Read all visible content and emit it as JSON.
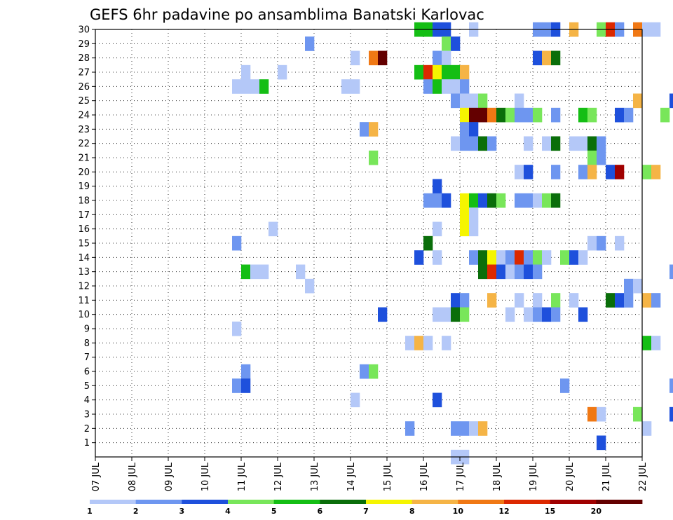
{
  "chart_data": {
    "type": "heatmap",
    "title": "GEFS 6hr padavine po ansamblima Banatski Karlovac",
    "xlabel": "",
    "ylabel": "",
    "x_tick_labels": [
      "07 JUL",
      "08 JUL",
      "09 JUL",
      "10 JUL",
      "11 JUL",
      "12 JUL",
      "13 JUL",
      "14 JUL",
      "15 JUL",
      "16 JUL",
      "17 JUL",
      "18 JUL",
      "19 JUL",
      "20 JUL",
      "21 JUL",
      "22 JUL"
    ],
    "x_range_days": [
      0,
      15
    ],
    "y_tick_labels": [
      "1",
      "2",
      "3",
      "4",
      "5",
      "6",
      "7",
      "8",
      "9",
      "10",
      "11",
      "12",
      "13",
      "14",
      "15",
      "16",
      "17",
      "18",
      "19",
      "20",
      "21",
      "22",
      "23",
      "24",
      "25",
      "26",
      "27",
      "28",
      "29",
      "30"
    ],
    "y_range": [
      0,
      30
    ],
    "grid": true,
    "time_step_hours": 6,
    "legend": {
      "placement": "bottom",
      "thresholds": [
        "1",
        "2",
        "3",
        "4",
        "5",
        "6",
        "7",
        "8",
        "10",
        "12",
        "15",
        "20"
      ],
      "colors": [
        "#b4c8f8",
        "#6e96f0",
        "#1e50dc",
        "#78e65a",
        "#14be14",
        "#0a6e0a",
        "#f5f500",
        "#f5b446",
        "#f07814",
        "#dc2800",
        "#a00000",
        "#640000"
      ]
    },
    "cells": [
      [
        30,
        15.75,
        5
      ],
      [
        30,
        16.0,
        5
      ],
      [
        30,
        16.25,
        3
      ],
      [
        30,
        16.5,
        3
      ],
      [
        30,
        17.25,
        1
      ],
      [
        30,
        19.0,
        2
      ],
      [
        30,
        19.25,
        2
      ],
      [
        30,
        19.5,
        3
      ],
      [
        30,
        20.0,
        8
      ],
      [
        30,
        20.75,
        4
      ],
      [
        30,
        21.0,
        10
      ],
      [
        30,
        21.25,
        2
      ],
      [
        30,
        21.75,
        9
      ],
      [
        30,
        22.0,
        1
      ],
      [
        30,
        22.25,
        1
      ],
      [
        29,
        12.75,
        2
      ],
      [
        29,
        16.5,
        4
      ],
      [
        29,
        16.75,
        3
      ],
      [
        28,
        14.0,
        1
      ],
      [
        28,
        14.5,
        9
      ],
      [
        28,
        14.75,
        12
      ],
      [
        28,
        16.25,
        2
      ],
      [
        28,
        16.5,
        1
      ],
      [
        28,
        19.0,
        3
      ],
      [
        28,
        19.25,
        8
      ],
      [
        28,
        19.5,
        6
      ],
      [
        27,
        11.0,
        1
      ],
      [
        27,
        12.0,
        1
      ],
      [
        27,
        15.75,
        5
      ],
      [
        27,
        16.0,
        10
      ],
      [
        27,
        16.25,
        7
      ],
      [
        27,
        16.5,
        5
      ],
      [
        27,
        16.75,
        5
      ],
      [
        27,
        17.0,
        8
      ],
      [
        26,
        10.75,
        1
      ],
      [
        26,
        11.0,
        1
      ],
      [
        26,
        11.25,
        1
      ],
      [
        26,
        11.5,
        5
      ],
      [
        26,
        13.75,
        1
      ],
      [
        26,
        14.0,
        1
      ],
      [
        26,
        16.0,
        2
      ],
      [
        26,
        16.25,
        5
      ],
      [
        26,
        16.5,
        1
      ],
      [
        26,
        16.75,
        1
      ],
      [
        26,
        17.0,
        2
      ],
      [
        25,
        16.75,
        2
      ],
      [
        25,
        17.0,
        1
      ],
      [
        25,
        17.25,
        1
      ],
      [
        25,
        17.5,
        4
      ],
      [
        25,
        18.5,
        1
      ],
      [
        25,
        21.75,
        8
      ],
      [
        25,
        22.75,
        3
      ],
      [
        24,
        17.0,
        7
      ],
      [
        24,
        17.25,
        12
      ],
      [
        24,
        17.5,
        12
      ],
      [
        24,
        17.75,
        9
      ],
      [
        24,
        18.0,
        6
      ],
      [
        24,
        18.25,
        4
      ],
      [
        24,
        18.5,
        2
      ],
      [
        24,
        18.75,
        2
      ],
      [
        24,
        19.0,
        4
      ],
      [
        24,
        19.5,
        2
      ],
      [
        24,
        20.25,
        5
      ],
      [
        24,
        20.5,
        4
      ],
      [
        24,
        21.25,
        3
      ],
      [
        24,
        21.5,
        2
      ],
      [
        24,
        22.5,
        4
      ],
      [
        23,
        14.25,
        2
      ],
      [
        23,
        14.5,
        8
      ],
      [
        23,
        17.0,
        2
      ],
      [
        23,
        17.25,
        3
      ],
      [
        22,
        16.75,
        1
      ],
      [
        22,
        17.0,
        2
      ],
      [
        22,
        17.25,
        2
      ],
      [
        22,
        17.5,
        6
      ],
      [
        22,
        17.75,
        2
      ],
      [
        22,
        18.75,
        1
      ],
      [
        22,
        19.25,
        1
      ],
      [
        22,
        19.5,
        6
      ],
      [
        22,
        20.0,
        1
      ],
      [
        22,
        20.25,
        1
      ],
      [
        22,
        20.5,
        6
      ],
      [
        22,
        20.75,
        2
      ],
      [
        21,
        14.5,
        4
      ],
      [
        21,
        20.5,
        4
      ],
      [
        21,
        20.75,
        2
      ],
      [
        20,
        18.5,
        1
      ],
      [
        20,
        18.75,
        3
      ],
      [
        20,
        19.5,
        2
      ],
      [
        20,
        20.25,
        2
      ],
      [
        20,
        20.5,
        8
      ],
      [
        20,
        21.0,
        3
      ],
      [
        20,
        21.25,
        11
      ],
      [
        20,
        22.0,
        4
      ],
      [
        20,
        22.25,
        8
      ],
      [
        19,
        16.25,
        3
      ],
      [
        18,
        16.0,
        2
      ],
      [
        18,
        16.25,
        2
      ],
      [
        18,
        16.5,
        3
      ],
      [
        18,
        17.0,
        7
      ],
      [
        18,
        17.25,
        5
      ],
      [
        18,
        17.5,
        3
      ],
      [
        18,
        17.75,
        6
      ],
      [
        18,
        18.0,
        4
      ],
      [
        18,
        18.5,
        2
      ],
      [
        18,
        18.75,
        2
      ],
      [
        18,
        19.0,
        1
      ],
      [
        18,
        19.25,
        4
      ],
      [
        18,
        19.5,
        6
      ],
      [
        17,
        17.0,
        7
      ],
      [
        17,
        17.25,
        1
      ],
      [
        16,
        11.75,
        1
      ],
      [
        16,
        16.25,
        1
      ],
      [
        16,
        17.0,
        7
      ],
      [
        16,
        17.25,
        1
      ],
      [
        15,
        10.75,
        2
      ],
      [
        15,
        20.5,
        1
      ],
      [
        15,
        20.75,
        2
      ],
      [
        15,
        21.25,
        1
      ],
      [
        14,
        15.75,
        3
      ],
      [
        15.0,
        16.0,
        6
      ],
      [
        14,
        16.25,
        1
      ],
      [
        14,
        17.25,
        2
      ],
      [
        14,
        17.5,
        6
      ],
      [
        14,
        17.75,
        7
      ],
      [
        14,
        18.0,
        1
      ],
      [
        14,
        18.25,
        2
      ],
      [
        14,
        18.5,
        10
      ],
      [
        14,
        18.75,
        2
      ],
      [
        14,
        19.0,
        4
      ],
      [
        14,
        19.25,
        1
      ],
      [
        14,
        19.75,
        4
      ],
      [
        14,
        20.0,
        3
      ],
      [
        14,
        20.25,
        1
      ],
      [
        13,
        11.0,
        5
      ],
      [
        13,
        11.25,
        1
      ],
      [
        13,
        11.5,
        1
      ],
      [
        13,
        12.5,
        1
      ],
      [
        13,
        17.5,
        6
      ],
      [
        13,
        17.75,
        10
      ],
      [
        13,
        18.0,
        3
      ],
      [
        13,
        18.25,
        1
      ],
      [
        13,
        18.5,
        2
      ],
      [
        13,
        18.75,
        3
      ],
      [
        13,
        19.0,
        2
      ],
      [
        13,
        22.75,
        2
      ],
      [
        12,
        12.75,
        1
      ],
      [
        12,
        21.5,
        2
      ],
      [
        12,
        21.75,
        1
      ],
      [
        11,
        16.75,
        3
      ],
      [
        11,
        17.0,
        2
      ],
      [
        11,
        17.75,
        8
      ],
      [
        11,
        18.5,
        1
      ],
      [
        11,
        19.0,
        1
      ],
      [
        11,
        19.5,
        4
      ],
      [
        11,
        20.0,
        1
      ],
      [
        11,
        21.0,
        6
      ],
      [
        11,
        21.25,
        3
      ],
      [
        11,
        21.5,
        2
      ],
      [
        11,
        22.0,
        8
      ],
      [
        11,
        22.25,
        2
      ],
      [
        10,
        14.75,
        3
      ],
      [
        10,
        16.25,
        1
      ],
      [
        10,
        16.5,
        1
      ],
      [
        10,
        16.75,
        6
      ],
      [
        10,
        17.0,
        4
      ],
      [
        10,
        18.25,
        1
      ],
      [
        10,
        18.75,
        1
      ],
      [
        10,
        19.0,
        2
      ],
      [
        10,
        19.25,
        3
      ],
      [
        10,
        19.5,
        2
      ],
      [
        10,
        20.25,
        3
      ],
      [
        9,
        10.75,
        1
      ],
      [
        8,
        15.5,
        1
      ],
      [
        8,
        15.75,
        8
      ],
      [
        8,
        16.0,
        1
      ],
      [
        8,
        16.5,
        1
      ],
      [
        8,
        22.0,
        5
      ],
      [
        8,
        22.25,
        1
      ],
      [
        6,
        11.0,
        2
      ],
      [
        6,
        14.25,
        2
      ],
      [
        6,
        14.5,
        4
      ],
      [
        5,
        10.75,
        2
      ],
      [
        5,
        11.0,
        3
      ],
      [
        5,
        19.75,
        2
      ],
      [
        5,
        22.75,
        2
      ],
      [
        4,
        14.0,
        1
      ],
      [
        4,
        16.25,
        3
      ],
      [
        3,
        20.5,
        9
      ],
      [
        3,
        20.75,
        1
      ],
      [
        3,
        21.75,
        4
      ],
      [
        3,
        22.75,
        3
      ],
      [
        2,
        15.5,
        2
      ],
      [
        2,
        16.75,
        2
      ],
      [
        2,
        17.0,
        2
      ],
      [
        2,
        17.25,
        1
      ],
      [
        2,
        17.5,
        8
      ],
      [
        2,
        22.0,
        1
      ],
      [
        1,
        20.75,
        3
      ],
      [
        0,
        16.75,
        1
      ],
      [
        0,
        17.0,
        1
      ]
    ]
  }
}
